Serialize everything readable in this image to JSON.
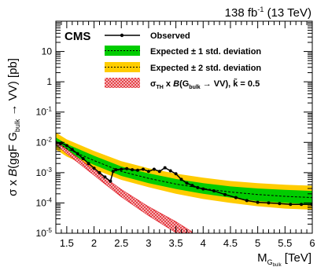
{
  "header": {
    "lumi": "138 fb",
    "lumi_exp": "-1",
    "energy": " (13 TeV)"
  },
  "experiment": "CMS",
  "colors": {
    "band1": "#00cc00",
    "band2": "#ffcc00",
    "theory": "#e0141e",
    "observed": "#000000"
  },
  "chart_data": {
    "type": "line",
    "xlabel_main": "M",
    "xlabel_sub": "G",
    "xlabel_subsub": "bulk",
    "xlabel_unit": " [TeV]",
    "ylabel_text": "σ x B(ggF G  → VV) [pb]",
    "ylabel_parts": {
      "a": "σ x ",
      "b": "B",
      "c": "(ggF G",
      "sub": "bulk",
      "d": " → VV) [pb]"
    },
    "xlim": [
      1.3,
      6.0
    ],
    "ylim": [
      1e-05,
      100
    ],
    "yscale": "log",
    "x_ticks": [
      1.5,
      2,
      2.5,
      3,
      3.5,
      4,
      4.5,
      5,
      5.5,
      6
    ],
    "x_tick_labels": [
      "1.5",
      "2",
      "2.5",
      "3",
      "3.5",
      "4",
      "4.5",
      "5",
      "5.5",
      "6"
    ],
    "y_ticks": [
      {
        "value": 1e-05,
        "base": "10",
        "exp": "-5"
      },
      {
        "value": 0.0001,
        "base": "10",
        "exp": "-4"
      },
      {
        "value": 0.001,
        "base": "10",
        "exp": "-3"
      },
      {
        "value": 0.01,
        "base": "10",
        "exp": "-2"
      },
      {
        "value": 0.1,
        "base": "10",
        "exp": "-1"
      },
      {
        "value": 1,
        "base": "1",
        "exp": ""
      },
      {
        "value": 10,
        "base": "10",
        "exp": ""
      }
    ],
    "legend": {
      "observed": "Observed",
      "expected1": "Expected ± 1 std. deviation",
      "expected2": "Expected ± 2 std. deviation",
      "theory_a": "σ",
      "theory_sub1": "TH",
      "theory_b": " x ",
      "theory_c": "B",
      "theory_d": "(G",
      "theory_sub2": "bulk",
      "theory_e": " → VV), ",
      "theory_k": "k̃ = 0.5",
      "placement": "top-right"
    },
    "series": [
      {
        "name": "Observed",
        "x": [
          1.3,
          1.4,
          1.5,
          1.6,
          1.7,
          1.8,
          1.9,
          2.0,
          2.1,
          2.2,
          2.3,
          2.35,
          2.4,
          2.5,
          2.6,
          2.7,
          2.8,
          2.9,
          3.0,
          3.1,
          3.2,
          3.3,
          3.4,
          3.5,
          3.6,
          3.7,
          3.8,
          3.9,
          4.0,
          4.2,
          4.4,
          4.6,
          4.8,
          5.0,
          5.2,
          5.4,
          5.6,
          5.8,
          6.0
        ],
        "y": [
          0.0098,
          0.0095,
          0.0078,
          0.0058,
          0.0042,
          0.0029,
          0.002,
          0.0014,
          0.001,
          0.00072,
          0.00052,
          0.0011,
          0.00125,
          0.0013,
          0.00135,
          0.00125,
          0.0012,
          0.0013,
          0.0011,
          0.0013,
          0.0011,
          0.00145,
          0.00115,
          0.00092,
          0.0006,
          0.00045,
          0.00038,
          0.00032,
          0.00029,
          0.00025,
          0.00019,
          0.00015,
          0.00012,
          0.000105,
          0.0001,
          9.5e-05,
          9e-05,
          9e-05,
          9e-05
        ]
      },
      {
        "name": "Expected",
        "x": [
          1.3,
          1.5,
          2.0,
          2.5,
          3.0,
          3.5,
          4.0,
          4.5,
          5.0,
          5.5,
          6.0
        ],
        "y": [
          0.0105,
          0.0062,
          0.0025,
          0.0011,
          0.00065,
          0.00042,
          0.0003,
          0.00023,
          0.00019,
          0.000165,
          0.00015
        ]
      },
      {
        "name": "Expected ± 1 std. deviation",
        "x": [
          1.3,
          1.5,
          2.0,
          2.5,
          3.0,
          3.5,
          4.0,
          4.5,
          5.0,
          5.5,
          6.0
        ],
        "low": [
          0.0077,
          0.0045,
          0.0018,
          0.00078,
          0.00045,
          0.00029,
          0.0002,
          0.00015,
          0.000115,
          0.0001,
          9e-05
        ],
        "high": [
          0.0145,
          0.0088,
          0.0036,
          0.0016,
          0.00095,
          0.00062,
          0.00045,
          0.00035,
          0.0003,
          0.00027,
          0.00025
        ]
      },
      {
        "name": "Expected ± 2 std. deviation",
        "x": [
          1.3,
          1.5,
          2.0,
          2.5,
          3.0,
          3.5,
          4.0,
          4.5,
          5.0,
          5.5,
          6.0
        ],
        "low": [
          0.0058,
          0.0034,
          0.0013,
          0.00058,
          0.00033,
          0.0002,
          0.000135,
          0.0001,
          7.8e-05,
          6.5e-05,
          6e-05
        ],
        "high": [
          0.021,
          0.0125,
          0.0052,
          0.0024,
          0.0014,
          0.00093,
          0.00068,
          0.00053,
          0.00045,
          0.0004,
          0.00037
        ]
      },
      {
        "name": "σTH x B(Gbulk → VV), k̃ = 0.5",
        "x": [
          1.3,
          1.5,
          2.0,
          2.5,
          3.0,
          3.5,
          3.8
        ],
        "low": [
          0.0085,
          0.0042,
          0.00082,
          0.00016,
          3.8e-05,
          1.05e-05,
          4.8e-06
        ],
        "high": [
          0.0112,
          0.0058,
          0.00125,
          0.00028,
          7.5e-05,
          2.4e-05,
          1.1e-05
        ]
      }
    ]
  }
}
